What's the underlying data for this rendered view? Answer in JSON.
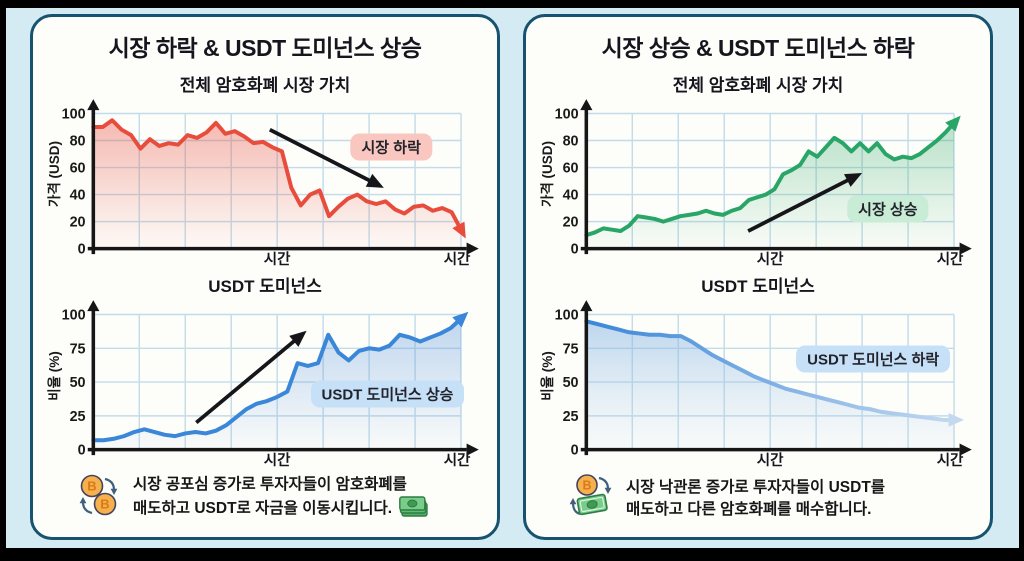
{
  "colors": {
    "page_bg": "#d4ebf3",
    "frame": "#000000",
    "panel_bg": "#fdfdfa",
    "panel_border": "#17536f",
    "grid": "#c3dcea",
    "axis": "#161616",
    "text": "#1a1a1a",
    "title": "#15151e"
  },
  "chart_data": [
    {
      "type": "line",
      "title": "전체 암호화폐 시장 가치",
      "ylabel": "가격 (USD)",
      "xlabel_mid": "시간",
      "xlabel_end": "시간",
      "yticks": [
        0,
        20,
        40,
        60,
        80,
        100
      ],
      "ylim": [
        0,
        100
      ],
      "grid": true,
      "line_color": "#e74c3c",
      "fill_from": "rgba(231,76,60,0.38)",
      "fill_to": "rgba(231,76,60,0.02)",
      "values": [
        90,
        90,
        95,
        88,
        84,
        74,
        81,
        76,
        78,
        77,
        84,
        82,
        86,
        93,
        85,
        87,
        83,
        78,
        79,
        75,
        72,
        45,
        32,
        40,
        43,
        24,
        31,
        37,
        40,
        35,
        33,
        35,
        29,
        26,
        31,
        32,
        28,
        30,
        27,
        14
      ],
      "annotation": {
        "label": "시장 하락",
        "label_bg": "#f9c7c0",
        "label_pos": [
          0.81,
          0.25
        ],
        "arrow": [
          0.48,
          0.12,
          0.79,
          0.55
        ]
      }
    },
    {
      "type": "line",
      "title": "USDT 도미넌스",
      "ylabel": "비율 (%)",
      "xlabel_mid": "시간",
      "xlabel_end": "시간",
      "yticks": [
        0,
        25,
        50,
        75,
        100
      ],
      "ylim": [
        0,
        100
      ],
      "grid": true,
      "line_color": "#3a86d8",
      "fill_from": "rgba(77,142,217,0.35)",
      "fill_to": "rgba(77,142,217,0.02)",
      "values": [
        7,
        7,
        8,
        10,
        13,
        15,
        13,
        11,
        10,
        12,
        13,
        12,
        14,
        18,
        24,
        30,
        34,
        36,
        39,
        43,
        64,
        62,
        64,
        85,
        72,
        66,
        73,
        75,
        74,
        77,
        85,
        83,
        80,
        83,
        86,
        90,
        97
      ],
      "annotation": {
        "label": "USDT 도미넌스 상승",
        "label_bg": "#c6e0f8",
        "label_pos": [
          0.8,
          0.59
        ],
        "arrow": [
          0.28,
          0.8,
          0.58,
          0.12
        ]
      }
    },
    {
      "type": "line",
      "title": "전체 암호화폐 시장 가치",
      "ylabel": "가격 (USD)",
      "xlabel_mid": "시간",
      "xlabel_end": "시간",
      "yticks": [
        0,
        20,
        40,
        60,
        80,
        100
      ],
      "ylim": [
        0,
        100
      ],
      "grid": true,
      "line_color": "#29a567",
      "fill_from": "rgba(42,166,97,0.32)",
      "fill_to": "rgba(42,166,97,0.02)",
      "values": [
        10,
        12,
        15,
        14,
        13,
        17,
        24,
        23,
        22,
        20,
        22,
        24,
        25,
        26,
        28,
        26,
        25,
        28,
        30,
        36,
        38,
        40,
        44,
        55,
        58,
        62,
        72,
        68,
        75,
        82,
        78,
        72,
        78,
        72,
        78,
        70,
        66,
        68,
        67,
        70,
        75,
        80,
        86,
        93
      ],
      "annotation": {
        "label": "시장 상승",
        "label_bg": "#c8ecd5",
        "label_pos": [
          0.82,
          0.71
        ],
        "arrow": [
          0.44,
          0.87,
          0.75,
          0.44
        ]
      }
    },
    {
      "type": "line",
      "title": "USDT 도미넌스",
      "ylabel": "비율 (%)",
      "xlabel_mid": "시간",
      "xlabel_end": "시간",
      "yticks": [
        0,
        25,
        50,
        75,
        100
      ],
      "ylim": [
        0,
        100
      ],
      "grid": true,
      "line_color": "#3a86d8",
      "stroke_fade": [
        "#3a86d8",
        "#c3d9f0"
      ],
      "fill_from": "rgba(125,175,225,0.50)",
      "fill_to": "rgba(170,205,235,0.06)",
      "values": [
        95,
        93,
        91,
        89,
        87,
        86,
        85,
        85,
        84,
        84,
        80,
        75,
        70,
        66,
        62,
        58,
        54,
        51,
        48,
        45,
        43,
        41,
        39,
        37,
        35,
        33,
        31,
        30,
        28,
        27,
        26,
        25,
        24,
        23,
        22,
        22
      ],
      "annotation": {
        "label": "USDT 도미넌스 하락",
        "label_bg": "#c6e0f8",
        "label_pos": [
          0.78,
          0.33
        ],
        "arrow": null
      }
    }
  ],
  "panels": [
    {
      "title": "시장 하락 & USDT 도미넌스 상승",
      "footer": {
        "icon_name": "bitcoin-swap-icon",
        "line1": "시장 공포심 증가로 투자자들이 암호화폐를",
        "line2": "매도하고 USDT로 자금을 이동시킵니다.",
        "trailing_icon": "cash-banknotes-icon"
      }
    },
    {
      "title": "시장 상승 & USDT 도미넌스 하락",
      "footer": {
        "icon_name": "bitcoin-cash-swap-icon",
        "line1": "시장 낙관론 증가로 투자자들이 USDT를",
        "line2": "매도하고 다른 암호화폐를 매수합니다.",
        "trailing_icon": null
      }
    }
  ]
}
